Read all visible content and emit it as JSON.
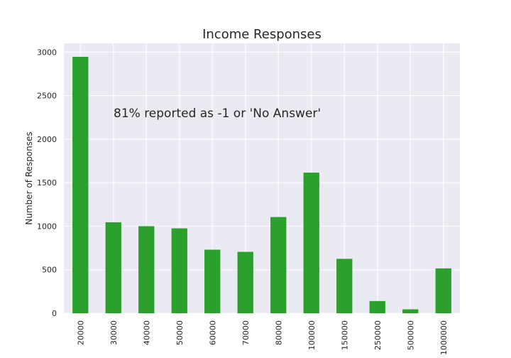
{
  "chart_data": {
    "type": "bar",
    "title": "Income Responses",
    "xlabel": "",
    "ylabel": "Number of Responses",
    "categories": [
      "20000",
      "30000",
      "40000",
      "50000",
      "60000",
      "70000",
      "80000",
      "100000",
      "150000",
      "250000",
      "500000",
      "1000000"
    ],
    "values": [
      2945,
      1045,
      1000,
      975,
      730,
      705,
      1105,
      1615,
      625,
      140,
      45,
      515
    ],
    "ylim": [
      0,
      3100
    ],
    "yticks": [
      0,
      500,
      1000,
      1500,
      2000,
      2500,
      3000
    ],
    "annotation": "81% reported as -1 or 'No Answer'",
    "grid": true,
    "colors": {
      "bar": "#2ca02c",
      "plot_bg": "#eaeaf2",
      "grid": "#ffffff"
    }
  }
}
